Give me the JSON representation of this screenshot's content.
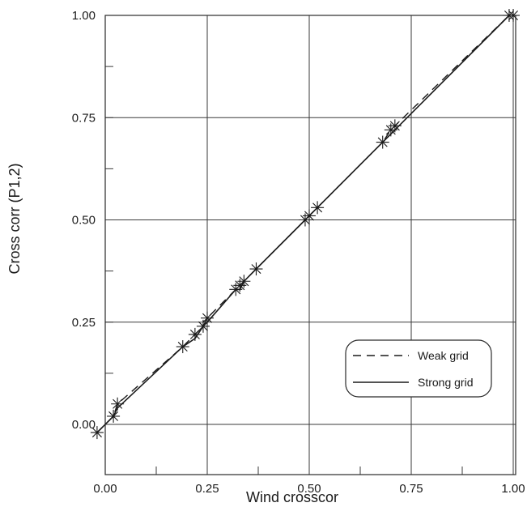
{
  "chart_data": {
    "type": "scatter",
    "title": "",
    "xlabel": "Wind crosscor",
    "ylabel": "Cross corr (P1,2)",
    "xlim": [
      -0.05,
      1.0
    ],
    "ylim": [
      -0.07,
      1.0
    ],
    "x_ticks": [
      0.0,
      0.25,
      0.5,
      0.75,
      1.0
    ],
    "x_tick_labels": [
      "0.00",
      "0.25",
      "0.50",
      "0.75",
      "1.00"
    ],
    "y_ticks": [
      0.0,
      0.25,
      0.5,
      0.75,
      1.0
    ],
    "y_tick_labels": [
      "0.00",
      "0.25",
      "0.50",
      "0.75",
      "1.00"
    ],
    "grid": true,
    "legend_position": "bottom-right",
    "series": [
      {
        "name": "Weak grid",
        "style": "dashed",
        "x": [
          -0.02,
          0.02,
          0.03,
          0.19,
          0.22,
          0.24,
          0.25,
          0.32,
          0.33,
          0.34,
          0.37,
          0.49,
          0.5,
          0.52,
          0.68,
          0.7,
          0.71,
          0.99
        ],
        "y": [
          -0.02,
          0.02,
          0.05,
          0.19,
          0.22,
          0.24,
          0.26,
          0.33,
          0.34,
          0.35,
          0.38,
          0.5,
          0.51,
          0.53,
          0.69,
          0.72,
          0.73,
          1.0
        ]
      },
      {
        "name": "Strong grid",
        "style": "solid",
        "x": [
          -0.02,
          0.02,
          0.03,
          0.19,
          0.22,
          0.24,
          0.25,
          0.32,
          0.33,
          0.34,
          0.37,
          0.49,
          0.5,
          0.52,
          0.68,
          0.7,
          0.71,
          0.99
        ],
        "y": [
          -0.02,
          0.02,
          0.04,
          0.19,
          0.21,
          0.24,
          0.25,
          0.33,
          0.33,
          0.35,
          0.38,
          0.5,
          0.51,
          0.53,
          0.69,
          0.71,
          0.72,
          1.0
        ]
      }
    ],
    "markers": {
      "symbol": "asterisk",
      "x": [
        -0.02,
        0.02,
        0.03,
        0.19,
        0.22,
        0.24,
        0.25,
        0.32,
        0.33,
        0.34,
        0.37,
        0.49,
        0.5,
        0.52,
        0.68,
        0.7,
        0.71,
        0.99,
        1.0
      ],
      "y": [
        -0.02,
        0.02,
        0.05,
        0.19,
        0.22,
        0.24,
        0.26,
        0.33,
        0.34,
        0.35,
        0.38,
        0.5,
        0.51,
        0.53,
        0.69,
        0.72,
        0.73,
        1.0,
        1.0
      ]
    }
  }
}
